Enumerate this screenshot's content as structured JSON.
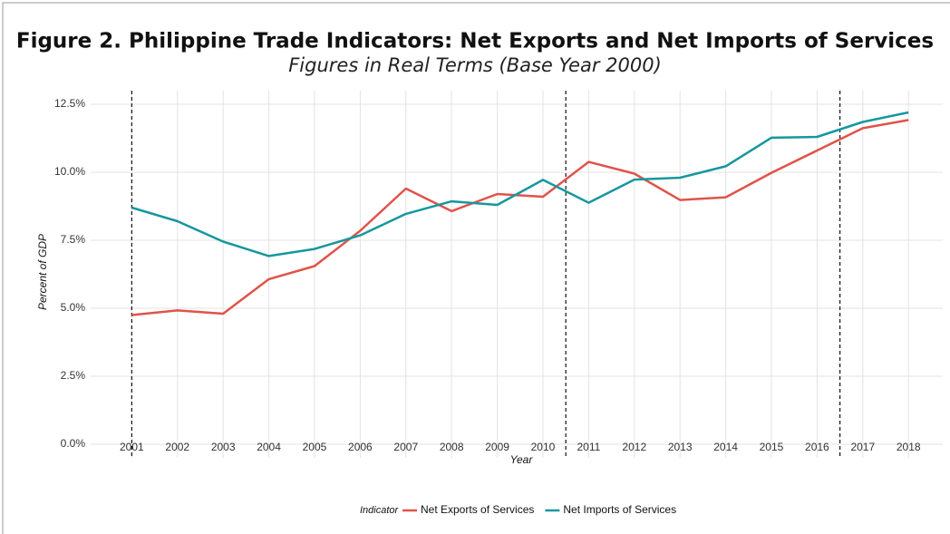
{
  "chart_data": {
    "type": "line",
    "title": "Figure 2. Philippine Trade Indicators: Net Exports and Net Imports of Services",
    "subtitle": "Figures in Real Terms (Base Year 2000)",
    "x_label": "Year",
    "y_label": "Percent of GDP",
    "legend_title": "Indicator",
    "x": [
      2001,
      2002,
      2003,
      2004,
      2005,
      2006,
      2007,
      2008,
      2009,
      2010,
      2011,
      2012,
      2013,
      2014,
      2015,
      2016,
      2017,
      2018
    ],
    "series": [
      {
        "name": "Net Exports of Services",
        "color": "#e0534a",
        "values": [
          4.75,
          4.92,
          4.8,
          6.07,
          6.55,
          7.85,
          9.4,
          8.57,
          9.2,
          9.1,
          10.38,
          9.95,
          8.98,
          9.08,
          9.98,
          10.8,
          11.62,
          11.92
        ]
      },
      {
        "name": "Net Imports of Services",
        "color": "#16979e",
        "values": [
          8.7,
          8.2,
          7.45,
          6.92,
          7.18,
          7.68,
          8.47,
          8.93,
          8.8,
          9.72,
          8.88,
          9.73,
          9.8,
          10.22,
          11.27,
          11.3,
          11.85,
          12.2
        ]
      }
    ],
    "reference_lines": [
      2001,
      2010.5,
      2016.5
    ],
    "xlim": [
      2000.1,
      2018.75
    ],
    "xticks": [
      2001,
      2002,
      2003,
      2004,
      2005,
      2006,
      2007,
      2008,
      2009,
      2010,
      2011,
      2012,
      2013,
      2014,
      2015,
      2016,
      2017,
      2018
    ],
    "ylim": [
      -0.5,
      13
    ],
    "yticks": [
      {
        "value": 0,
        "label": "0.0%"
      },
      {
        "value": 2.5,
        "label": "2.5%"
      },
      {
        "value": 5,
        "label": "5.0%"
      },
      {
        "value": 7.5,
        "label": "7.5%"
      },
      {
        "value": 10,
        "label": "10.0%"
      },
      {
        "value": 12.5,
        "label": "12.5%"
      }
    ],
    "grid": true,
    "legend": "bottom"
  }
}
